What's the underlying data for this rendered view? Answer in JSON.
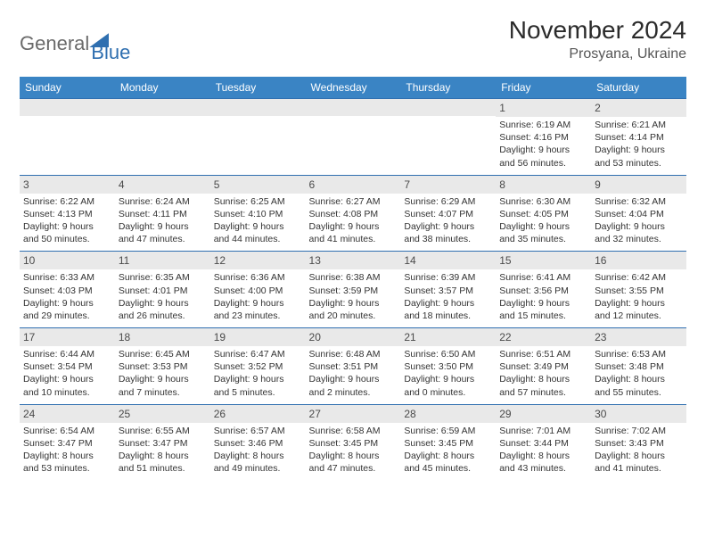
{
  "logo": {
    "text1": "General",
    "text2": "Blue"
  },
  "title": "November 2024",
  "location": "Prosyana, Ukraine",
  "colors": {
    "header_bg": "#3a84c4",
    "header_text": "#ffffff",
    "divider": "#2f6fb0",
    "daynum_bg": "#e9e9e9",
    "text": "#333333",
    "logo_gray": "#6a6a6a",
    "logo_blue": "#2f6fb0"
  },
  "day_headers": [
    "Sunday",
    "Monday",
    "Tuesday",
    "Wednesday",
    "Thursday",
    "Friday",
    "Saturday"
  ],
  "weeks": [
    [
      null,
      null,
      null,
      null,
      null,
      {
        "n": "1",
        "sunrise": "6:19 AM",
        "sunset": "4:16 PM",
        "dl": "9 hours and 56 minutes."
      },
      {
        "n": "2",
        "sunrise": "6:21 AM",
        "sunset": "4:14 PM",
        "dl": "9 hours and 53 minutes."
      }
    ],
    [
      {
        "n": "3",
        "sunrise": "6:22 AM",
        "sunset": "4:13 PM",
        "dl": "9 hours and 50 minutes."
      },
      {
        "n": "4",
        "sunrise": "6:24 AM",
        "sunset": "4:11 PM",
        "dl": "9 hours and 47 minutes."
      },
      {
        "n": "5",
        "sunrise": "6:25 AM",
        "sunset": "4:10 PM",
        "dl": "9 hours and 44 minutes."
      },
      {
        "n": "6",
        "sunrise": "6:27 AM",
        "sunset": "4:08 PM",
        "dl": "9 hours and 41 minutes."
      },
      {
        "n": "7",
        "sunrise": "6:29 AM",
        "sunset": "4:07 PM",
        "dl": "9 hours and 38 minutes."
      },
      {
        "n": "8",
        "sunrise": "6:30 AM",
        "sunset": "4:05 PM",
        "dl": "9 hours and 35 minutes."
      },
      {
        "n": "9",
        "sunrise": "6:32 AM",
        "sunset": "4:04 PM",
        "dl": "9 hours and 32 minutes."
      }
    ],
    [
      {
        "n": "10",
        "sunrise": "6:33 AM",
        "sunset": "4:03 PM",
        "dl": "9 hours and 29 minutes."
      },
      {
        "n": "11",
        "sunrise": "6:35 AM",
        "sunset": "4:01 PM",
        "dl": "9 hours and 26 minutes."
      },
      {
        "n": "12",
        "sunrise": "6:36 AM",
        "sunset": "4:00 PM",
        "dl": "9 hours and 23 minutes."
      },
      {
        "n": "13",
        "sunrise": "6:38 AM",
        "sunset": "3:59 PM",
        "dl": "9 hours and 20 minutes."
      },
      {
        "n": "14",
        "sunrise": "6:39 AM",
        "sunset": "3:57 PM",
        "dl": "9 hours and 18 minutes."
      },
      {
        "n": "15",
        "sunrise": "6:41 AM",
        "sunset": "3:56 PM",
        "dl": "9 hours and 15 minutes."
      },
      {
        "n": "16",
        "sunrise": "6:42 AM",
        "sunset": "3:55 PM",
        "dl": "9 hours and 12 minutes."
      }
    ],
    [
      {
        "n": "17",
        "sunrise": "6:44 AM",
        "sunset": "3:54 PM",
        "dl": "9 hours and 10 minutes."
      },
      {
        "n": "18",
        "sunrise": "6:45 AM",
        "sunset": "3:53 PM",
        "dl": "9 hours and 7 minutes."
      },
      {
        "n": "19",
        "sunrise": "6:47 AM",
        "sunset": "3:52 PM",
        "dl": "9 hours and 5 minutes."
      },
      {
        "n": "20",
        "sunrise": "6:48 AM",
        "sunset": "3:51 PM",
        "dl": "9 hours and 2 minutes."
      },
      {
        "n": "21",
        "sunrise": "6:50 AM",
        "sunset": "3:50 PM",
        "dl": "9 hours and 0 minutes."
      },
      {
        "n": "22",
        "sunrise": "6:51 AM",
        "sunset": "3:49 PM",
        "dl": "8 hours and 57 minutes."
      },
      {
        "n": "23",
        "sunrise": "6:53 AM",
        "sunset": "3:48 PM",
        "dl": "8 hours and 55 minutes."
      }
    ],
    [
      {
        "n": "24",
        "sunrise": "6:54 AM",
        "sunset": "3:47 PM",
        "dl": "8 hours and 53 minutes."
      },
      {
        "n": "25",
        "sunrise": "6:55 AM",
        "sunset": "3:47 PM",
        "dl": "8 hours and 51 minutes."
      },
      {
        "n": "26",
        "sunrise": "6:57 AM",
        "sunset": "3:46 PM",
        "dl": "8 hours and 49 minutes."
      },
      {
        "n": "27",
        "sunrise": "6:58 AM",
        "sunset": "3:45 PM",
        "dl": "8 hours and 47 minutes."
      },
      {
        "n": "28",
        "sunrise": "6:59 AM",
        "sunset": "3:45 PM",
        "dl": "8 hours and 45 minutes."
      },
      {
        "n": "29",
        "sunrise": "7:01 AM",
        "sunset": "3:44 PM",
        "dl": "8 hours and 43 minutes."
      },
      {
        "n": "30",
        "sunrise": "7:02 AM",
        "sunset": "3:43 PM",
        "dl": "8 hours and 41 minutes."
      }
    ]
  ],
  "labels": {
    "sunrise": "Sunrise: ",
    "sunset": "Sunset: ",
    "daylight": "Daylight: "
  }
}
